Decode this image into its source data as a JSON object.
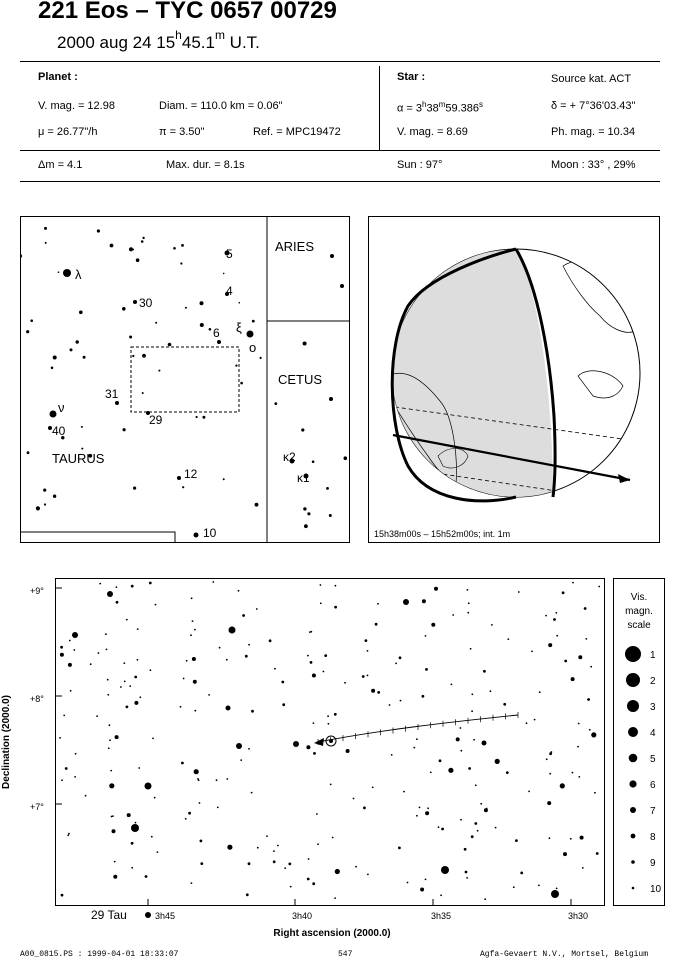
{
  "header": {
    "title": "221 Eos  –  TYC 0657 00729",
    "subtitle_date": "2000 aug 24  15",
    "subtitle_h": "h",
    "subtitle_min": "45.1",
    "subtitle_m": "m",
    "subtitle_tz": " U.T."
  },
  "planet": {
    "heading": "Planet :",
    "vmag": "V. mag. = 12.98",
    "diam": "Diam. = 110.0 km = 0.06\"",
    "mu": "μ =  26.77\"/h",
    "pi": "π =  3.50\"",
    "ref": "Ref. = MPC19472"
  },
  "star": {
    "heading": "Star :",
    "source": "Source kat.  ACT",
    "alpha": "α = 3",
    "alpha_h": "h",
    "alpha_min": "38",
    "alpha_m": "m",
    "alpha_sec": "59.386",
    "alpha_s": "s",
    "delta": "δ = + 7°36'03.43\"",
    "vmag": "V. mag. =  8.69",
    "phmag": "Ph. mag. = 10.34"
  },
  "summary": {
    "dm": "Δm = 4.1",
    "maxdur": "Max. dur. = 8.1s",
    "sun": "Sun :  97°",
    "moon": "Moon :  33° , 29%"
  },
  "finder": {
    "region_aries": "ARIES",
    "region_cetus": "CETUS",
    "region_taurus": "TAURUS",
    "labels": [
      "λ",
      "5",
      "4",
      "30",
      "6",
      "ξ",
      "ο",
      "31",
      "29",
      "ν",
      "40",
      "κ2",
      "κ1",
      "12",
      "10"
    ]
  },
  "globe": {
    "caption": "15h38m00s – 15h52m00s; int.  1m"
  },
  "chart": {
    "dec_labels": [
      "+9°",
      "+8°",
      "+7°"
    ],
    "ra_labels": [
      "3h45",
      "3h40",
      "3h35",
      "3h30"
    ],
    "ref_star": "29 Tau",
    "xlabel": "Right ascension (2000.0)",
    "ylabel": "Declination (2000.0)",
    "scale_title": [
      "Vis.",
      "magn.",
      "scale"
    ],
    "scale_mags": [
      "1",
      "2",
      "3",
      "4",
      "5",
      "6",
      "7",
      "8",
      "9",
      "10"
    ]
  },
  "footer": {
    "left": "A00_0815.PS : 1999-04-01 18:33:07",
    "mid": "547",
    "right": "Agfa-Gevaert N.V., Mortsel, Belgium"
  }
}
